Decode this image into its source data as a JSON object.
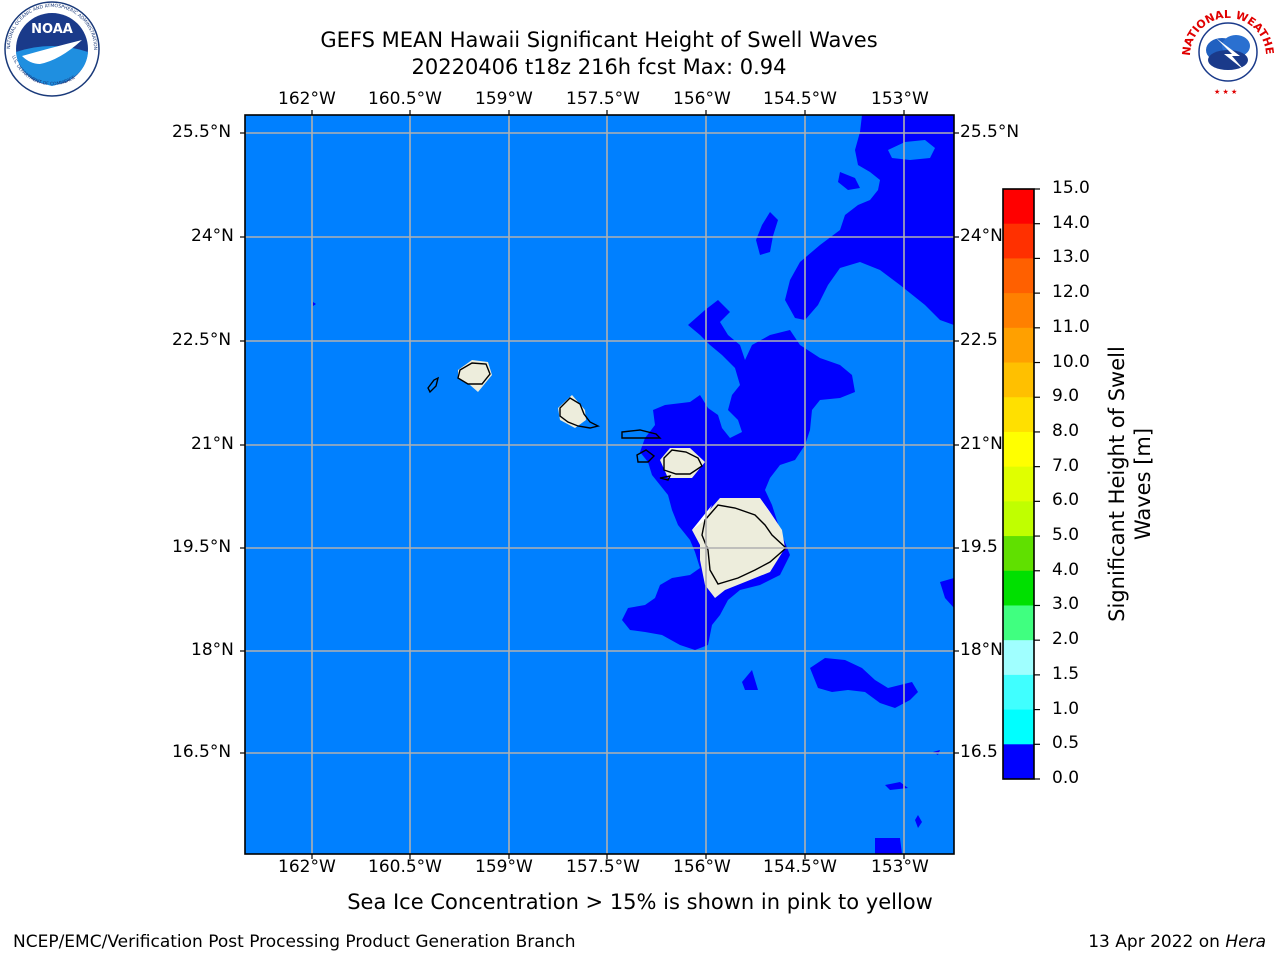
{
  "header": {
    "title_line1": "GEFS MEAN Hawaii Significant Height of Swell Waves",
    "title_line2": "20220406 t18z 216h fcst   Max: 0.94"
  },
  "logos": {
    "left": {
      "name": "NOAA",
      "ring_text": "NATIONAL OCEANIC AND ATMOSPHERIC ADMINISTRATION · U.S. DEPARTMENT OF COMMERCE"
    },
    "right": {
      "name": "NATIONAL WEATHER SERVICE"
    }
  },
  "map": {
    "lon_labels": [
      "162°W",
      "160.5°W",
      "159°W",
      "157.5°W",
      "156°W",
      "154.5°W",
      "153°W"
    ],
    "lat_labels_left": [
      "25.5°N",
      "24°N",
      "22.5°N",
      "21°N",
      "19.5°N",
      "18°N",
      "16.5°N"
    ],
    "lat_labels_right": [
      "25.5°N",
      "24°N",
      "22.5",
      "21°N",
      "19.5",
      "18°N",
      "16.5"
    ],
    "colors": {
      "ocean_light": "#0080ff",
      "ocean_dark": "#0000ff",
      "land": "#ededdc",
      "grid": "#b0b0b0"
    }
  },
  "colorbar": {
    "label": "Significant Height of Swell Waves [m]",
    "ticks": [
      "15.0",
      "14.0",
      "13.0",
      "12.0",
      "11.0",
      "10.0",
      "9.0",
      "8.0",
      "7.0",
      "6.0",
      "5.0",
      "4.0",
      "3.0",
      "2.0",
      "1.5",
      "1.0",
      "0.5",
      "0.0"
    ],
    "colors": [
      "#ff0000",
      "#ff3000",
      "#ff6000",
      "#ff8000",
      "#ffa000",
      "#ffc000",
      "#ffe000",
      "#ffff00",
      "#e0ff00",
      "#c0ff00",
      "#60e000",
      "#00e000",
      "#40ff80",
      "#a0ffff",
      "#40ffff",
      "#00ffff",
      "#0080ff",
      "#0000ff"
    ]
  },
  "note": "Sea Ice Concentration > 15% is shown in pink to yellow",
  "footer": {
    "left": "NCEP/EMC/Verification Post Processing Product Generation Branch",
    "right_prefix": "13 Apr 2022 on ",
    "right_host": "Hera"
  }
}
